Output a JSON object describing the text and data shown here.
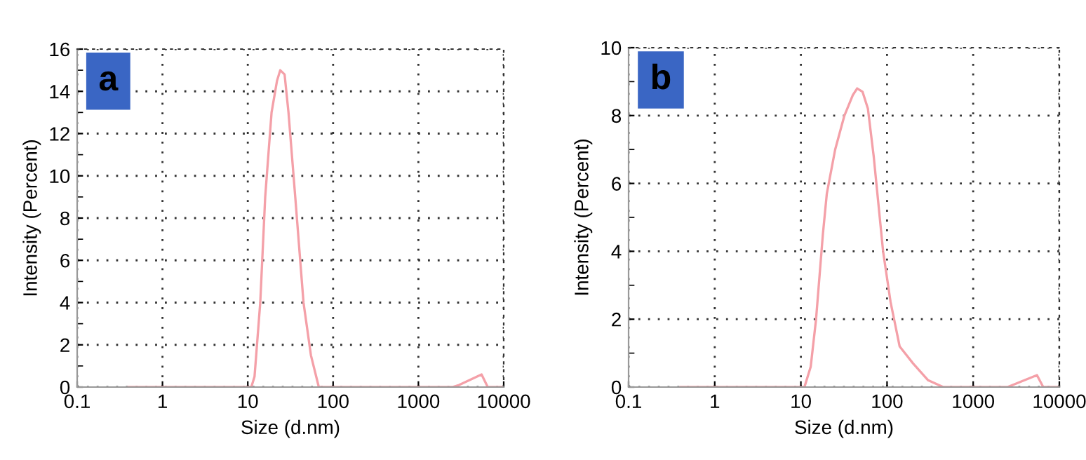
{
  "chart_data": [
    {
      "type": "line",
      "xlabel": "Size (d.nm)",
      "ylabel": "Intensity (Percent)",
      "annotations": [
        "a"
      ],
      "log": "x",
      "grid": true,
      "legend": false,
      "marker": "none",
      "line_style": "solid",
      "xlim": [
        0.1,
        10000
      ],
      "xticks": [
        0.1,
        1,
        10,
        100,
        1000,
        10000
      ],
      "ylim": [
        0,
        16
      ],
      "yticks": [
        0,
        2,
        4,
        6,
        8,
        10,
        12,
        14,
        16
      ],
      "series": [
        {
          "color": "#f4a0a8",
          "x": [
            0.4,
            11,
            12,
            14,
            16,
            19,
            22,
            24,
            27,
            30,
            36,
            45,
            55,
            68,
            2500,
            3000,
            5500,
            6500,
            10000
          ],
          "values": [
            0,
            0,
            0.5,
            4,
            9,
            13,
            14.5,
            15,
            14.8,
            13,
            9,
            4,
            1.5,
            0,
            0,
            0.1,
            0.6,
            0,
            0
          ]
        }
      ]
    },
    {
      "type": "line",
      "xlabel": "Size (d.nm)",
      "ylabel": "Intensity (Percent)",
      "annotations": [
        "b"
      ],
      "log": "x",
      "grid": true,
      "legend": false,
      "marker": "none",
      "line_style": "solid",
      "xlim": [
        0.1,
        10000
      ],
      "xticks": [
        0.1,
        1,
        10,
        100,
        1000,
        10000
      ],
      "ylim": [
        0,
        10
      ],
      "yticks": [
        0,
        2,
        4,
        6,
        8,
        10
      ],
      "series": [
        {
          "color": "#f4a0a8",
          "x": [
            0.4,
            11,
            13,
            15,
            18,
            20,
            25,
            32,
            40,
            45,
            52,
            60,
            70,
            90,
            110,
            140,
            200,
            300,
            450,
            2500,
            5500,
            6500,
            10000
          ],
          "values": [
            0,
            0,
            0.6,
            2,
            4.5,
            5.7,
            7,
            8,
            8.6,
            8.8,
            8.7,
            8.2,
            6.8,
            4,
            2.5,
            1.2,
            0.7,
            0.2,
            0,
            0,
            0.35,
            0,
            0
          ]
        }
      ]
    }
  ]
}
